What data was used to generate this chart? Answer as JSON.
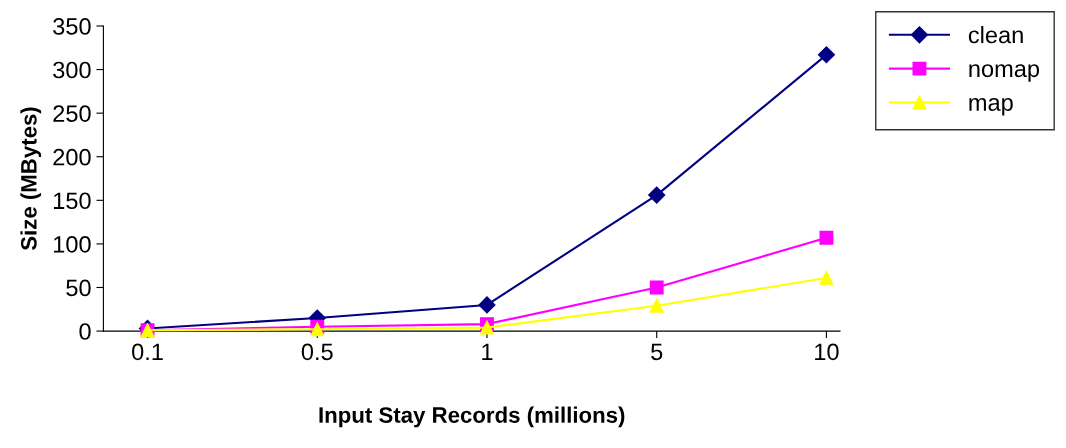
{
  "chart_data": {
    "type": "line",
    "xlabel": "Input Stay Records (millions)",
    "ylabel": "Size (MBytes)",
    "categories": [
      "0.1",
      "0.5",
      "1",
      "5",
      "10"
    ],
    "series": [
      {
        "name": "clean",
        "color": "#000080",
        "marker": "diamond",
        "values": [
          3,
          15,
          30,
          156,
          317
        ]
      },
      {
        "name": "nomap",
        "color": "#ff00ff",
        "marker": "square",
        "values": [
          1,
          5,
          8,
          50,
          107
        ]
      },
      {
        "name": "map",
        "color": "#ffff00",
        "marker": "triangle",
        "values": [
          1,
          2,
          4,
          29,
          61
        ]
      }
    ],
    "ylim": [
      0,
      350
    ],
    "yticks": [
      0,
      50,
      100,
      150,
      200,
      250,
      300,
      350
    ],
    "grid": false,
    "legend": "top right",
    "line_style": "solid"
  }
}
